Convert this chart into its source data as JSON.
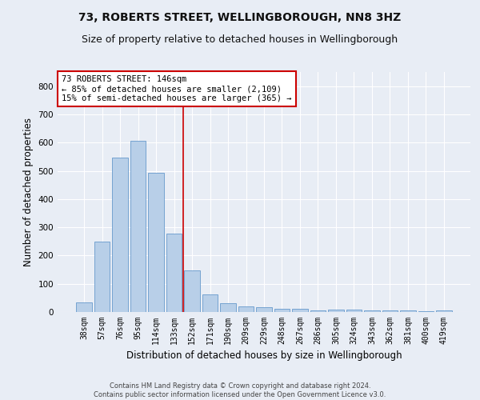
{
  "title": "73, ROBERTS STREET, WELLINGBOROUGH, NN8 3HZ",
  "subtitle": "Size of property relative to detached houses in Wellingborough",
  "xlabel": "Distribution of detached houses by size in Wellingborough",
  "ylabel": "Number of detached properties",
  "categories": [
    "38sqm",
    "57sqm",
    "76sqm",
    "95sqm",
    "114sqm",
    "133sqm",
    "152sqm",
    "171sqm",
    "190sqm",
    "209sqm",
    "229sqm",
    "248sqm",
    "267sqm",
    "286sqm",
    "305sqm",
    "324sqm",
    "343sqm",
    "362sqm",
    "381sqm",
    "400sqm",
    "419sqm"
  ],
  "values": [
    33,
    248,
    548,
    605,
    493,
    278,
    148,
    62,
    32,
    20,
    16,
    12,
    10,
    6,
    8,
    8,
    7,
    5,
    5,
    3,
    7
  ],
  "bar_color": "#b8cfe8",
  "bar_edge_color": "#6699cc",
  "vline_x": 5.5,
  "vline_color": "#cc0000",
  "annotation_text": "73 ROBERTS STREET: 146sqm\n← 85% of detached houses are smaller (2,109)\n15% of semi-detached houses are larger (365) →",
  "annotation_box_color": "#ffffff",
  "annotation_box_edge_color": "#cc0000",
  "ylim": [
    0,
    850
  ],
  "yticks": [
    0,
    100,
    200,
    300,
    400,
    500,
    600,
    700,
    800
  ],
  "background_color": "#e8edf5",
  "grid_color": "#ffffff",
  "footer_line1": "Contains HM Land Registry data © Crown copyright and database right 2024.",
  "footer_line2": "Contains public sector information licensed under the Open Government Licence v3.0.",
  "title_fontsize": 10,
  "subtitle_fontsize": 9,
  "tick_fontsize": 7,
  "ylabel_fontsize": 8.5,
  "xlabel_fontsize": 8.5,
  "annotation_fontsize": 7.5
}
